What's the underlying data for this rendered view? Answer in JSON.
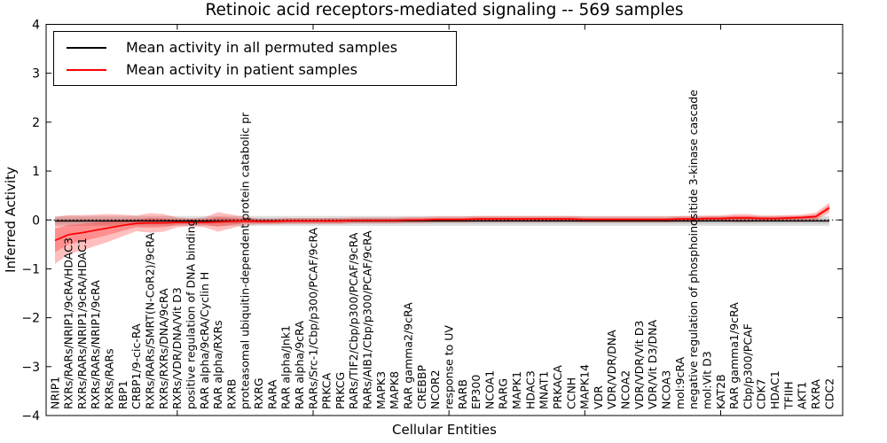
{
  "chart_data": {
    "type": "line",
    "title": "Retinoic acid receptors-mediated signaling -- 569 samples",
    "xlabel": "Cellular Entities",
    "ylabel": "Inferred Activity",
    "ylim": [
      -4,
      4
    ],
    "yticks": [
      4,
      3,
      2,
      1,
      0,
      -1,
      -2,
      -3,
      -4
    ],
    "grid": false,
    "zero_line_dotted": true,
    "legend_position": "upper left",
    "legend": {
      "entries": [
        {
          "label": "Mean activity in all permuted samples",
          "color": "#000000"
        },
        {
          "label": "Mean activity in patient samples",
          "color": "#ff0000"
        }
      ]
    },
    "categories": [
      "NRIP1",
      "RXRs/RARs/NRIP1/9cRA/HDAC3",
      "RXRs/RARs/NRIP1/9cRA/HDAC1",
      "RXRs/RARs/NRIP1/9cRA",
      "RXRs/RARs",
      "RBP1",
      "CRBP1/9-cic-RA",
      "RXRs/RARs/SMRT(N-CoR2)/9cRA",
      "RXRs/RXRs/DNA/9cRA",
      "RXRs/VDR/DNA/Vit D3",
      "positive regulation of DNA binding",
      "RAR alpha/9cRA/Cyclin H",
      "RAR alpha/RXRs",
      "RXRB",
      "proteasomal ubiquitin-dependent protein catabolic pr",
      "RXRG",
      "RARA",
      "RAR alpha/Jnk1",
      "RAR alpha/9cRA",
      "RARs/Src-1/Cbp/p300/PCAF/9cRA",
      "PRKCA",
      "PRKCG",
      "RARs/TIF2/Cbp/p300/PCAF/9cRA",
      "RARs/AIB1/Cbp/p300/PCAF/9cRA",
      "MAPK3",
      "MAPK8",
      "RAR gamma2/9cRA",
      "CREBBP",
      "NCOR2",
      "response to UV",
      "RARB",
      "EP300",
      "NCOA1",
      "RARG",
      "MAPK1",
      "HDAC3",
      "MNAT1",
      "PRKACA",
      "CCNH",
      "MAPK14",
      "VDR",
      "VDR/VDR/DNA",
      "NCOA2",
      "VDR/VDR/Vit D3",
      "VDR/Vit D3/DNA",
      "NCOA3",
      "mol:9cRA",
      "negative regulation of phosphoinositide 3-kinase cascade",
      "mol:Vit D3",
      "KAT2B",
      "RAR gamma1/9cRA",
      "Cbp/p300/PCAF",
      "CDK7",
      "HDAC1",
      "TFIIH",
      "AKT1",
      "RXRA",
      "CDC2"
    ],
    "series": [
      {
        "name": "Mean activity in all permuted samples",
        "color": "#000000",
        "band_fill": "rgba(0,0,0,0.13)",
        "mean_constant": -0.02,
        "sigma_constant": 0.05
      },
      {
        "name": "Mean activity in patient samples",
        "color": "#ff0000",
        "band_fill": "rgba(255,0,0,0.25)",
        "mean": [
          -0.42,
          -0.3,
          -0.26,
          -0.21,
          -0.16,
          -0.11,
          -0.07,
          -0.06,
          -0.06,
          -0.05,
          -0.05,
          -0.05,
          -0.04,
          -0.03,
          -0.02,
          -0.03,
          -0.03,
          -0.02,
          -0.02,
          -0.02,
          -0.02,
          -0.02,
          -0.01,
          -0.01,
          -0.01,
          -0.01,
          0.0,
          0.0,
          0.01,
          0.01,
          0.01,
          0.02,
          0.02,
          0.02,
          0.02,
          0.02,
          0.02,
          0.02,
          0.02,
          0.01,
          0.01,
          0.01,
          0.01,
          0.01,
          0.01,
          0.01,
          0.02,
          0.02,
          0.03,
          0.03,
          0.04,
          0.04,
          0.03,
          0.03,
          0.04,
          0.05,
          0.07,
          0.25
        ],
        "sigma": [
          0.24,
          0.2,
          0.18,
          0.16,
          0.14,
          0.11,
          0.08,
          0.1,
          0.09,
          0.05,
          0.04,
          0.05,
          0.1,
          0.07,
          0.04,
          0.03,
          0.03,
          0.03,
          0.03,
          0.03,
          0.03,
          0.03,
          0.03,
          0.03,
          0.03,
          0.03,
          0.03,
          0.03,
          0.03,
          0.03,
          0.03,
          0.03,
          0.03,
          0.03,
          0.03,
          0.03,
          0.03,
          0.03,
          0.03,
          0.03,
          0.03,
          0.03,
          0.03,
          0.03,
          0.03,
          0.03,
          0.03,
          0.03,
          0.03,
          0.03,
          0.04,
          0.04,
          0.03,
          0.03,
          0.03,
          0.03,
          0.04,
          0.05
        ]
      }
    ]
  }
}
